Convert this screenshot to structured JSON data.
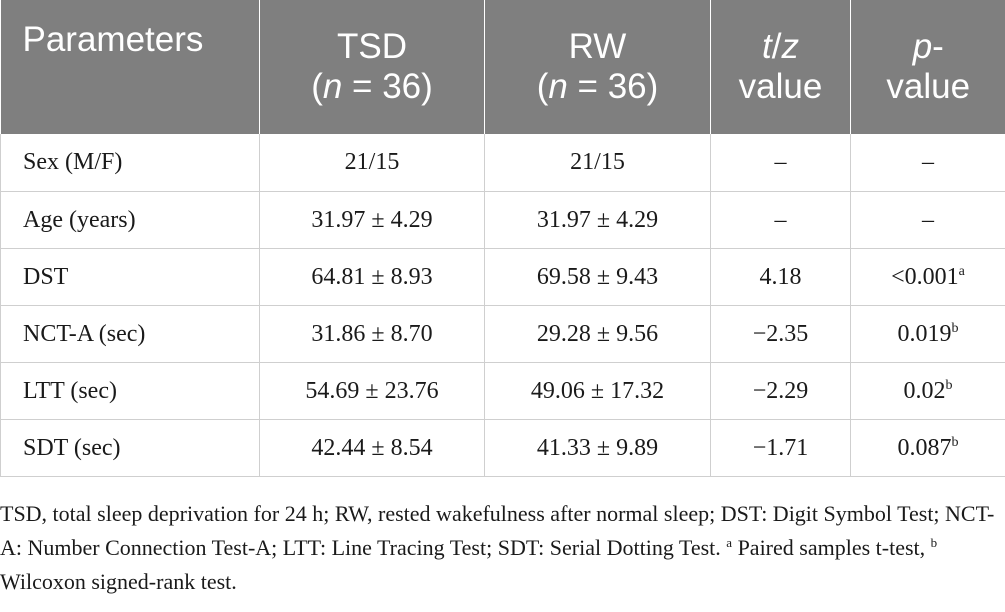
{
  "table": {
    "headers": [
      {
        "l1": "Parameters",
        "l2": ""
      },
      {
        "l1": "TSD",
        "l2": "(n = 36)"
      },
      {
        "l1": "RW",
        "l2": "(n = 36)"
      },
      {
        "l1": "t/z",
        "l2": "value"
      },
      {
        "l1": "p-",
        "l2": "value"
      }
    ],
    "rows": [
      {
        "param": "Sex (M/F)",
        "tsd": "21/15",
        "rw": "21/15",
        "tz": "–",
        "p": "–",
        "p_sup": ""
      },
      {
        "param": "Age (years)",
        "tsd": "31.97 ± 4.29",
        "rw": "31.97 ± 4.29",
        "tz": "–",
        "p": "–",
        "p_sup": ""
      },
      {
        "param": "DST",
        "tsd": "64.81 ± 8.93",
        "rw": "69.58 ± 9.43",
        "tz": "4.18",
        "p": "<0.001",
        "p_sup": "a"
      },
      {
        "param": "NCT-A (sec)",
        "tsd": "31.86 ± 8.70",
        "rw": "29.28 ± 9.56",
        "tz": "−2.35",
        "p": "0.019",
        "p_sup": "b"
      },
      {
        "param": "LTT (sec)",
        "tsd": "54.69 ± 23.76",
        "rw": "49.06 ± 17.32",
        "tz": "−2.29",
        "p": "0.02",
        "p_sup": "b"
      },
      {
        "param": "SDT (sec)",
        "tsd": "42.44 ± 8.54",
        "rw": "41.33 ± 9.89",
        "tz": "−1.71",
        "p": "0.087",
        "p_sup": "b"
      }
    ]
  },
  "footnote": {
    "text": "TSD, total sleep deprivation for 24 h; RW, rested wakefulness after normal sleep; DST: Digit Symbol Test; NCT-A: Number Connection Test-A; LTT: Line Tracing Test; SDT: Serial Dotting Test.",
    "sup_a": "a",
    "text_a": " Paired samples t-test,",
    "sup_b": "b",
    "text_b": " Wilcoxon signed-rank test."
  }
}
